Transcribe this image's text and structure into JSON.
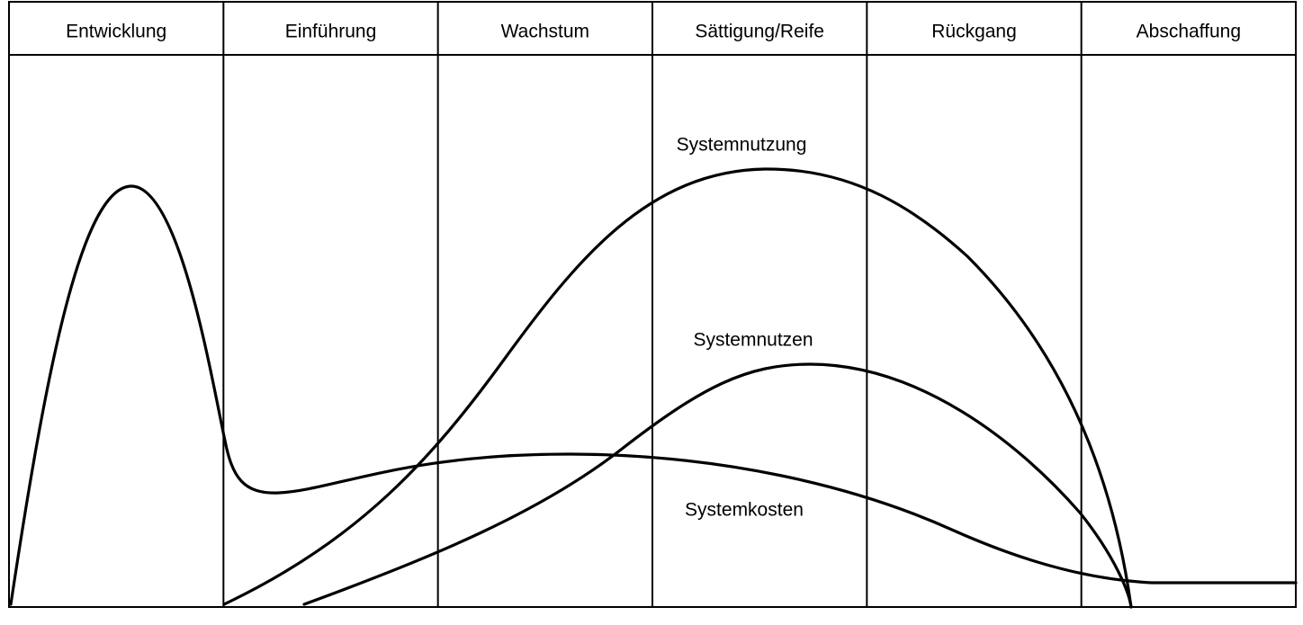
{
  "phases": [
    "Entwicklung",
    "Einführung",
    "Wachstum",
    "Sättigung/Reife",
    "Rückgang",
    "Abschaffung"
  ],
  "curves": [
    {
      "label": "Systemnutzung"
    },
    {
      "label": "Systemnutzen"
    },
    {
      "label": "Systemkosten"
    }
  ]
}
